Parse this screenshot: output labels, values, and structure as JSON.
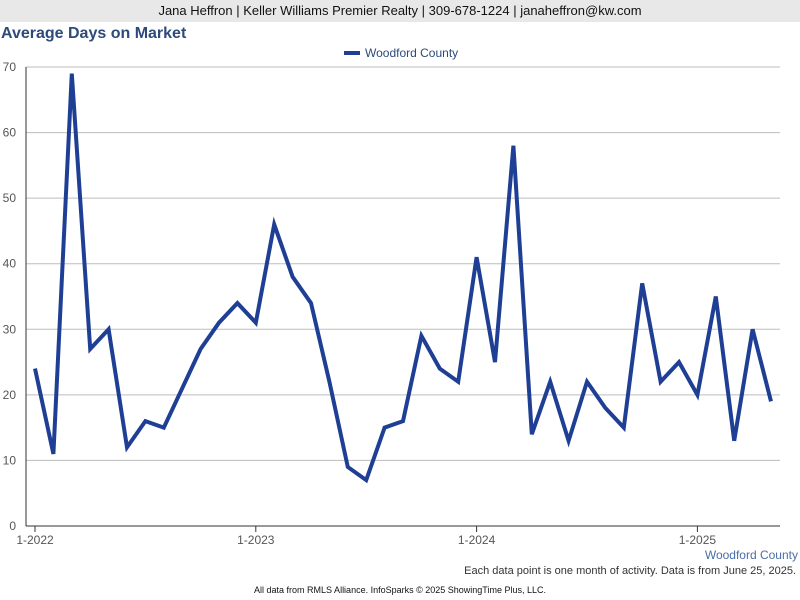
{
  "header": {
    "text": "Jana Heffron | Keller Williams Premier Realty | 309-678-1224 | janaheffron@kw.com"
  },
  "footer": {
    "series_label": "Woodford County",
    "note": "Each data point is one month of activity. Data is from June 25, 2025.",
    "source": "All data from RMLS Alliance. InfoSparks © 2025 ShowingTime Plus, LLC."
  },
  "chart_data": {
    "type": "line",
    "title": "Average Days on Market",
    "xlabel": "",
    "ylabel": "",
    "ylim": [
      0,
      70
    ],
    "yticks": [
      0,
      10,
      20,
      30,
      40,
      50,
      60,
      70
    ],
    "grid": true,
    "legend_position": "top-center",
    "x_tick_labels": [
      {
        "label": "1-2022",
        "index": 0
      },
      {
        "label": "1-2023",
        "index": 12
      },
      {
        "label": "1-2024",
        "index": 24
      },
      {
        "label": "1-2025",
        "index": 36
      }
    ],
    "x": [
      "2022-01",
      "2022-02",
      "2022-03",
      "2022-04",
      "2022-05",
      "2022-06",
      "2022-07",
      "2022-08",
      "2022-09",
      "2022-10",
      "2022-11",
      "2022-12",
      "2023-01",
      "2023-02",
      "2023-03",
      "2023-04",
      "2023-05",
      "2023-06",
      "2023-07",
      "2023-08",
      "2023-09",
      "2023-10",
      "2023-11",
      "2023-12",
      "2024-01",
      "2024-02",
      "2024-03",
      "2024-04",
      "2024-05",
      "2024-06",
      "2024-07",
      "2024-08",
      "2024-09",
      "2024-10",
      "2024-11",
      "2024-12",
      "2025-01",
      "2025-02",
      "2025-03",
      "2025-04",
      "2025-05"
    ],
    "series": [
      {
        "name": "Woodford County",
        "color": "#1f3f95",
        "values": [
          24,
          11,
          69,
          27,
          30,
          12,
          16,
          15,
          21,
          27,
          31,
          34,
          31,
          46,
          38,
          34,
          22,
          9,
          7,
          15,
          16,
          29,
          24,
          22,
          41,
          25,
          58,
          14,
          22,
          13,
          22,
          18,
          15,
          37,
          22,
          25,
          20,
          35,
          13,
          30,
          19
        ]
      }
    ]
  }
}
